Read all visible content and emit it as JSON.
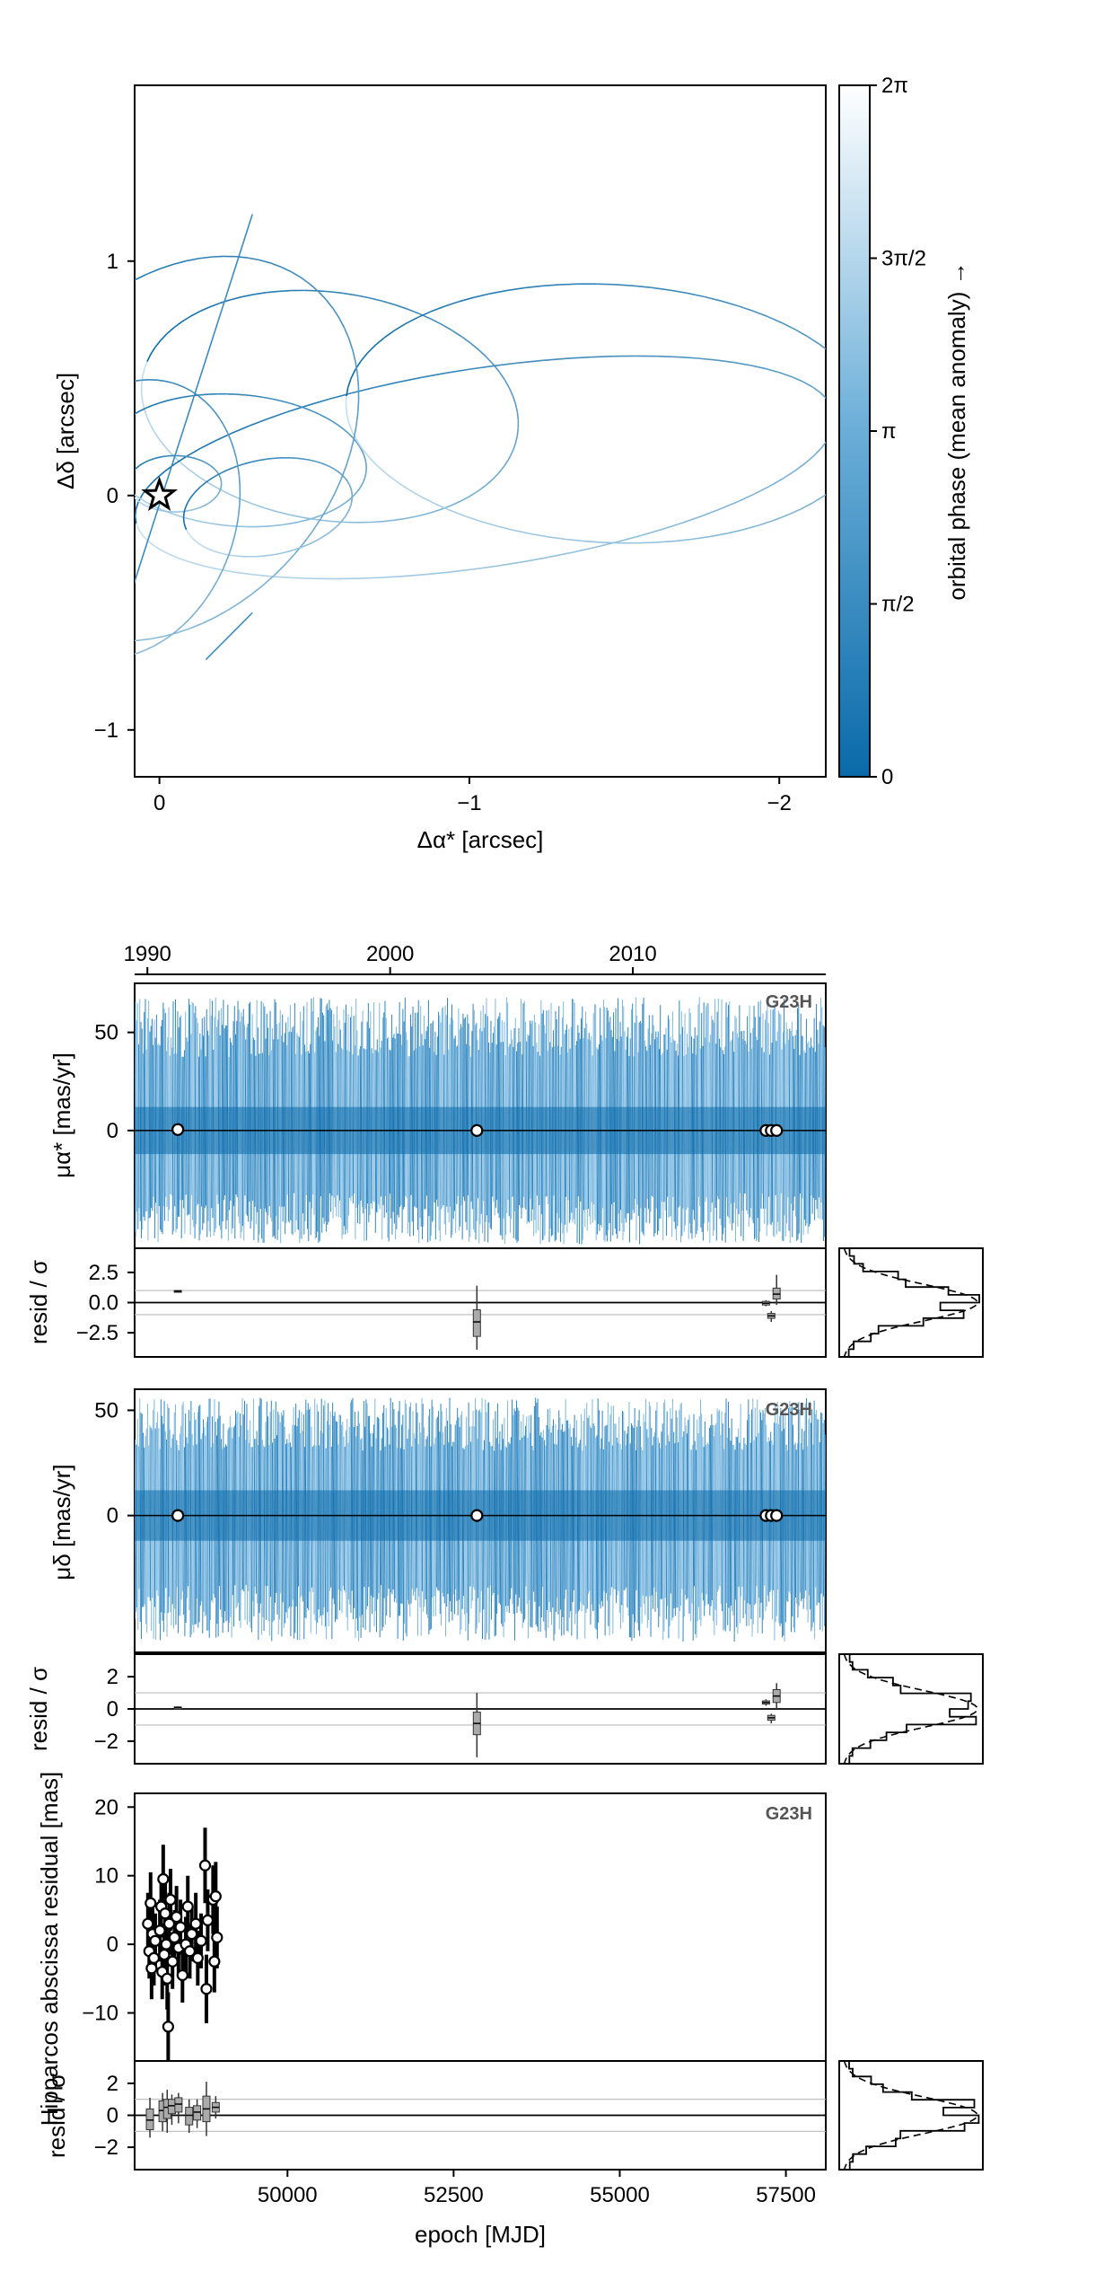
{
  "chart_data": [
    {
      "type": "line",
      "panel": "orbit-sky",
      "xlabel": "Δα* [arcsec]",
      "ylabel": "Δδ [arcsec]",
      "xlim": [
        0.08,
        -2.15
      ],
      "ylim": [
        -1.2,
        1.75
      ],
      "x_tick_labels": [
        "0",
        "−1",
        "−2"
      ],
      "y_tick_labels": [
        "−1",
        "0",
        "1"
      ],
      "colorbar": {
        "label": "orbital phase (mean anomaly) →",
        "tick_labels": [
          "0",
          "π/2",
          "π",
          "3π/2",
          "2π"
        ],
        "range": [
          0,
          6.283
        ],
        "color_low": "#0a6aa9",
        "color_high": "#ffffff"
      },
      "star_marker": {
        "x": 0,
        "y": 0
      },
      "orbits": [
        {
          "cx": -0.55,
          "cy": 0.38,
          "a": 0.62,
          "b": 0.48,
          "rot": 18
        },
        {
          "cx": -1.05,
          "cy": 0.12,
          "a": 1.15,
          "b": 0.42,
          "rot": -12
        },
        {
          "cx": -0.25,
          "cy": 0.15,
          "a": 0.42,
          "b": 0.28,
          "rot": 8
        },
        {
          "cx": -1.45,
          "cy": 0.35,
          "a": 0.85,
          "b": 0.55,
          "rot": 5
        },
        {
          "cx": -0.05,
          "cy": 0.05,
          "a": 0.15,
          "b": 0.12,
          "rot": 0
        },
        {
          "cx": -0.05,
          "cy": 0.2,
          "a": 0.55,
          "b": 0.85,
          "rot": 20
        },
        {
          "cx": -0.35,
          "cy": -0.05,
          "a": 0.28,
          "b": 0.2,
          "rot": -20
        },
        {
          "cx": 0.1,
          "cy": -0.1,
          "a": 0.35,
          "b": 0.6,
          "rot": 10
        }
      ],
      "segments": [
        {
          "x": [
            0.1,
            -0.3
          ],
          "y": [
            -0.45,
            1.2
          ]
        },
        {
          "x": [
            -0.15,
            -0.3
          ],
          "y": [
            -0.7,
            -0.5
          ]
        },
        {
          "x": [
            0.25,
            0.6
          ],
          "y": [
            -0.4,
            -0.35
          ]
        }
      ]
    },
    {
      "type": "line",
      "panel": "pm-ra",
      "ylabel": "μα* [mas/yr]",
      "y_tick_labels": [
        "0",
        "50"
      ],
      "top_axis_tick_labels": [
        "1990",
        "2000",
        "2010"
      ],
      "instrument": "G23H",
      "ylim": [
        -60,
        75
      ],
      "model_amplitude": [
        -58,
        68
      ],
      "points": [
        {
          "x": 48350,
          "y": 0.5
        },
        {
          "x": 52850,
          "y": 0.0
        },
        {
          "x": 57200,
          "y": 0.0
        },
        {
          "x": 57280,
          "y": 0.0
        },
        {
          "x": 57360,
          "y": 0.0
        }
      ],
      "residuals": {
        "ylabel": "resid / σ",
        "y_tick_labels": [
          "−2.5",
          "0.0",
          "2.5"
        ],
        "ylim": [
          -4.5,
          4.5
        ],
        "reference_lines": [
          -1,
          0,
          1
        ],
        "boxes": [
          {
            "x": 48350,
            "lo": 0.9,
            "q1": 0.9,
            "med": 0.95,
            "q3": 1.0,
            "hi": 1.0
          },
          {
            "x": 52850,
            "lo": -3.9,
            "q1": -2.8,
            "med": -1.6,
            "q3": -0.6,
            "hi": 1.4
          },
          {
            "x": 57200,
            "lo": -0.3,
            "q1": -0.2,
            "med": -0.05,
            "q3": 0.1,
            "hi": 0.2
          },
          {
            "x": 57280,
            "lo": -1.6,
            "q1": -1.3,
            "med": -1.1,
            "q3": -0.9,
            "hi": -0.7
          },
          {
            "x": 57360,
            "lo": -0.2,
            "q1": 0.3,
            "med": 0.7,
            "q3": 1.2,
            "hi": 2.3
          }
        ]
      }
    },
    {
      "type": "line",
      "panel": "pm-dec",
      "ylabel": "μδ [mas/yr]",
      "y_tick_labels": [
        "0",
        "50"
      ],
      "instrument": "G23H",
      "ylim": [
        -65,
        60
      ],
      "model_amplitude": [
        -60,
        56
      ],
      "points": [
        {
          "x": 48350,
          "y": 0.0
        },
        {
          "x": 52850,
          "y": 0.0
        },
        {
          "x": 57200,
          "y": 0.0
        },
        {
          "x": 57280,
          "y": 0.0
        },
        {
          "x": 57360,
          "y": 0.0
        }
      ],
      "residuals": {
        "ylabel": "resid / σ",
        "y_tick_labels": [
          "−2",
          "0",
          "2"
        ],
        "ylim": [
          -3.4,
          3.4
        ],
        "reference_lines": [
          -1,
          0,
          1
        ],
        "boxes": [
          {
            "x": 48350,
            "lo": 0.05,
            "q1": 0.08,
            "med": 0.1,
            "q3": 0.12,
            "hi": 0.15
          },
          {
            "x": 52850,
            "lo": -3.0,
            "q1": -1.6,
            "med": -0.9,
            "q3": -0.2,
            "hi": 1.0
          },
          {
            "x": 57200,
            "lo": 0.2,
            "q1": 0.3,
            "med": 0.4,
            "q3": 0.5,
            "hi": 0.6
          },
          {
            "x": 57280,
            "lo": -0.9,
            "q1": -0.7,
            "med": -0.55,
            "q3": -0.4,
            "hi": -0.3
          },
          {
            "x": 57360,
            "lo": 0.0,
            "q1": 0.4,
            "med": 0.8,
            "q3": 1.2,
            "hi": 1.6
          }
        ]
      }
    },
    {
      "type": "scatter",
      "panel": "hipparcos",
      "ylabel": "Hipparcos abscissa residual [mas]",
      "y_tick_labels": [
        "−10",
        "0",
        "10",
        "20"
      ],
      "instrument": "G23H",
      "ylim": [
        -17,
        22
      ],
      "points": [
        {
          "x": 47900,
          "y": 3.0,
          "err": 4.5
        },
        {
          "x": 47920,
          "y": -1.0,
          "err": 4.0
        },
        {
          "x": 47940,
          "y": 6.0,
          "err": 4.5
        },
        {
          "x": 47955,
          "y": -3.5,
          "err": 4.5
        },
        {
          "x": 47970,
          "y": 1.5,
          "err": 4.0
        },
        {
          "x": 47990,
          "y": -2.0,
          "err": 4.0
        },
        {
          "x": 48010,
          "y": 0.5,
          "err": 4.0
        },
        {
          "x": 48080,
          "y": 2.0,
          "err": 4.5
        },
        {
          "x": 48100,
          "y": 5.5,
          "err": 4.5
        },
        {
          "x": 48115,
          "y": -4.0,
          "err": 4.0
        },
        {
          "x": 48130,
          "y": 9.5,
          "err": 5.0
        },
        {
          "x": 48145,
          "y": -1.5,
          "err": 4.5
        },
        {
          "x": 48160,
          "y": 4.5,
          "err": 4.5
        },
        {
          "x": 48175,
          "y": 0.0,
          "err": 4.0
        },
        {
          "x": 48190,
          "y": -5.0,
          "err": 4.5
        },
        {
          "x": 48205,
          "y": -12.0,
          "err": 5.0
        },
        {
          "x": 48220,
          "y": 3.0,
          "err": 4.5
        },
        {
          "x": 48240,
          "y": 6.5,
          "err": 4.5
        },
        {
          "x": 48270,
          "y": -2.5,
          "err": 4.0
        },
        {
          "x": 48300,
          "y": 1.0,
          "err": 4.0
        },
        {
          "x": 48330,
          "y": 4.0,
          "err": 4.5
        },
        {
          "x": 48360,
          "y": -0.5,
          "err": 4.0
        },
        {
          "x": 48390,
          "y": 2.5,
          "err": 4.0
        },
        {
          "x": 48420,
          "y": -4.5,
          "err": 4.0
        },
        {
          "x": 48470,
          "y": 0.0,
          "err": 4.0
        },
        {
          "x": 48500,
          "y": 5.5,
          "err": 4.5
        },
        {
          "x": 48530,
          "y": -1.0,
          "err": 4.0
        },
        {
          "x": 48560,
          "y": 1.5,
          "err": 4.0
        },
        {
          "x": 48620,
          "y": 3.0,
          "err": 4.5
        },
        {
          "x": 48650,
          "y": -2.0,
          "err": 4.0
        },
        {
          "x": 48700,
          "y": 0.5,
          "err": 4.0
        },
        {
          "x": 48760,
          "y": 11.5,
          "err": 5.5
        },
        {
          "x": 48780,
          "y": -6.5,
          "err": 5.0
        },
        {
          "x": 48800,
          "y": 3.5,
          "err": 4.5
        },
        {
          "x": 48880,
          "y": 6.5,
          "err": 5.0
        },
        {
          "x": 48900,
          "y": -2.5,
          "err": 4.5
        },
        {
          "x": 48920,
          "y": 7.0,
          "err": 5.0
        },
        {
          "x": 48940,
          "y": 1.0,
          "err": 4.5
        }
      ],
      "residuals": {
        "ylabel": "resid / σ",
        "y_tick_labels": [
          "−2",
          "0",
          "2"
        ],
        "ylim": [
          -3.4,
          3.4
        ],
        "reference_lines": [
          -1,
          0,
          1
        ],
        "boxes": [
          {
            "x": 47930,
            "lo": -1.4,
            "q1": -0.9,
            "med": -0.3,
            "q3": 0.4,
            "hi": 1.1
          },
          {
            "x": 48120,
            "lo": -1.0,
            "q1": -0.4,
            "med": 0.3,
            "q3": 0.9,
            "hi": 1.4
          },
          {
            "x": 48190,
            "lo": -1.1,
            "q1": -0.2,
            "med": 0.5,
            "q3": 1.0,
            "hi": 1.6
          },
          {
            "x": 48260,
            "lo": -0.6,
            "q1": 0.1,
            "med": 0.6,
            "q3": 1.0,
            "hi": 1.3
          },
          {
            "x": 48360,
            "lo": -0.5,
            "q1": 0.2,
            "med": 0.7,
            "q3": 1.1,
            "hi": 1.4
          },
          {
            "x": 48520,
            "lo": -1.1,
            "q1": -0.6,
            "med": 0.0,
            "q3": 0.5,
            "hi": 1.0
          },
          {
            "x": 48640,
            "lo": -0.8,
            "q1": -0.3,
            "med": 0.2,
            "q3": 0.6,
            "hi": 1.0
          },
          {
            "x": 48780,
            "lo": -1.3,
            "q1": -0.4,
            "med": 0.4,
            "q3": 1.2,
            "hi": 2.1
          },
          {
            "x": 48920,
            "lo": -0.2,
            "q1": 0.2,
            "med": 0.5,
            "q3": 0.8,
            "hi": 1.2
          }
        ]
      }
    }
  ],
  "shared_x_axis": {
    "xlabel": "epoch [MJD]",
    "xlim": [
      47700,
      58100
    ],
    "tick_labels": [
      "50000",
      "52500",
      "55000",
      "57500"
    ]
  }
}
